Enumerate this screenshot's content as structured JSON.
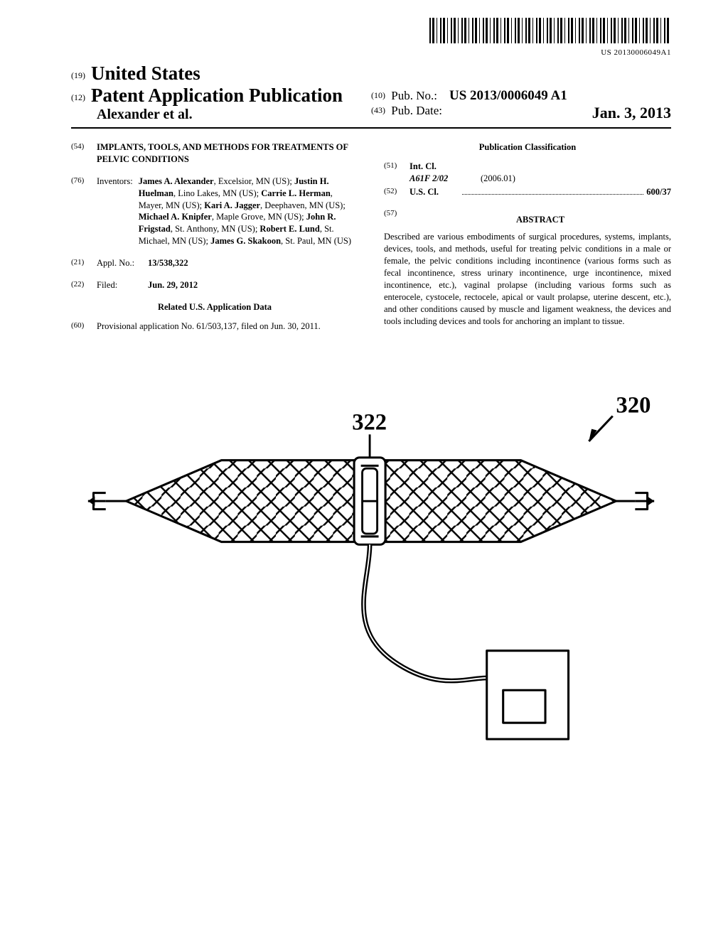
{
  "barcode_text": "US 20130006049A1",
  "header": {
    "code19": "(19)",
    "country": "United States",
    "code12": "(12)",
    "doc_type": "Patent Application Publication",
    "author_line": "Alexander et al.",
    "code10": "(10)",
    "pub_no_label": "Pub. No.:",
    "pub_no": "US 2013/0006049 A1",
    "code43": "(43)",
    "pub_date_label": "Pub. Date:",
    "pub_date": "Jan. 3, 2013"
  },
  "title": {
    "code": "(54)",
    "text": "IMPLANTS, TOOLS, AND METHODS FOR TREATMENTS OF PELVIC CONDITIONS"
  },
  "inventors": {
    "code": "(76)",
    "label": "Inventors:",
    "list": "James A. Alexander, Excelsior, MN (US); Justin H. Huelman, Lino Lakes, MN (US); Carrie L. Herman, Mayer, MN (US); Kari A. Jagger, Deephaven, MN (US); Michael A. Knipfer, Maple Grove, MN (US); John R. Frigstad, St. Anthony, MN (US); Robert E. Lund, St. Michael, MN (US); James G. Skakoon, St. Paul, MN (US)",
    "html": "<span class='inventor-name'>James A. Alexander</span>, Excelsior, MN (US); <span class='inventor-name'>Justin H. Huelman</span>, Lino Lakes, MN (US); <span class='inventor-name'>Carrie L. Herman</span>, Mayer, MN (US); <span class='inventor-name'>Kari A. Jagger</span>, Deephaven, MN (US); <span class='inventor-name'>Michael A. Knipfer</span>, Maple Grove, MN (US); <span class='inventor-name'>John R. Frigstad</span>, St. Anthony, MN (US); <span class='inventor-name'>Robert E. Lund</span>, St. Michael, MN (US); <span class='inventor-name'>James G. Skakoon</span>, St. Paul, MN (US)"
  },
  "appl_no": {
    "code": "(21)",
    "label": "Appl. No.:",
    "value": "13/538,322"
  },
  "filed": {
    "code": "(22)",
    "label": "Filed:",
    "value": "Jun. 29, 2012"
  },
  "related": {
    "header": "Related U.S. Application Data",
    "code": "(60)",
    "text": "Provisional application No. 61/503,137, filed on Jun. 30, 2011."
  },
  "classification": {
    "header": "Publication Classification",
    "int_cl": {
      "code": "(51)",
      "label": "Int. Cl.",
      "class_code": "A61F 2/02",
      "edition": "(2006.01)"
    },
    "us_cl": {
      "code": "(52)",
      "label": "U.S. Cl.",
      "value": "600/37"
    }
  },
  "abstract": {
    "code": "(57)",
    "header": "ABSTRACT",
    "text": "Described are various embodiments of surgical procedures, systems, implants, devices, tools, and methods, useful for treating pelvic conditions in a male or female, the pelvic conditions including incontinence (various forms such as fecal incontinence, stress urinary incontinence, urge incontinence, mixed incontinence, etc.), vaginal prolapse (including various forms such as enterocele, cystocele, rectocele, apical or vault prolapse, uterine descent, etc.), and other conditions caused by muscle and ligament weakness, the devices and tools including devices and tools for anchoring an implant to tissue."
  },
  "figure": {
    "label_322": "322",
    "label_320": "320",
    "stroke_width": 3.2,
    "stroke_color": "#000000",
    "fill_color": "none"
  }
}
